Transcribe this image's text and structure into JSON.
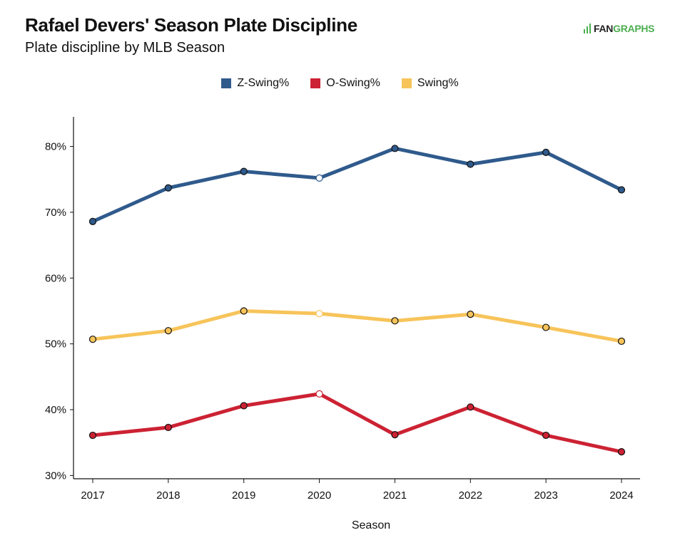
{
  "header": {
    "title": "Rafael Devers' Season Plate Discipline",
    "subtitle": "Plate discipline by MLB Season",
    "logo_fan": "FAN",
    "logo_graphs": "GRAPHS"
  },
  "chart_data": {
    "type": "line",
    "title": "Rafael Devers' Season Plate Discipline",
    "subtitle": "Plate discipline by MLB Season",
    "xlabel": "Season",
    "ylabel": "",
    "categories": [
      "2017",
      "2018",
      "2019",
      "2020",
      "2021",
      "2022",
      "2023",
      "2024"
    ],
    "ylim": [
      29.5,
      84.5
    ],
    "yticks": [
      30,
      40,
      50,
      60,
      70,
      80
    ],
    "ytick_labels": [
      "30%",
      "40%",
      "50%",
      "60%",
      "70%",
      "80%"
    ],
    "legend_position": "top-center",
    "grid": false,
    "series": [
      {
        "name": "Z-Swing%",
        "color": "#2f5a8c",
        "values": [
          68.6,
          73.7,
          76.2,
          75.2,
          79.7,
          77.3,
          79.1,
          73.4
        ],
        "hollow_index": 3
      },
      {
        "name": "O-Swing%",
        "color": "#cc2233",
        "values": [
          36.1,
          37.3,
          40.6,
          42.4,
          36.2,
          40.4,
          36.1,
          33.6
        ],
        "hollow_index": 3
      },
      {
        "name": "Swing%",
        "color": "#f7c45a",
        "values": [
          50.7,
          52.0,
          55.0,
          54.6,
          53.5,
          54.5,
          52.5,
          50.4
        ],
        "hollow_index": 3
      }
    ]
  }
}
